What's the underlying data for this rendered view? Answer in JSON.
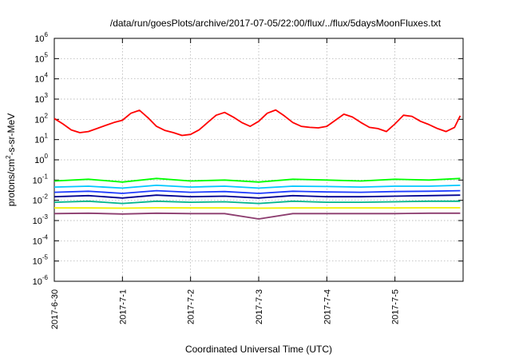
{
  "chart_data": {
    "type": "line",
    "title": "/data/run/goesPlots/archive/2017-07-05/22:00/flux/../flux/5daysMoonFluxes.txt",
    "xlabel": "Coordinated Universal Time (UTC)",
    "ylabel_parts": {
      "before": "protons/cm",
      "sup": "2",
      "after": "-s-sr-MeV"
    },
    "yscale": "log",
    "ylim": [
      1e-06,
      1000000.0
    ],
    "xlim": [
      "2017-06-30 00:00",
      "2017-07-06 00:00"
    ],
    "grid": true,
    "y_ticks": [
      {
        "value": 1e-06,
        "base": "10",
        "exp": "-6"
      },
      {
        "value": 1e-05,
        "base": "10",
        "exp": "-5"
      },
      {
        "value": 0.0001,
        "base": "10",
        "exp": "-4"
      },
      {
        "value": 0.001,
        "base": "10",
        "exp": "-3"
      },
      {
        "value": 0.01,
        "base": "10",
        "exp": "-2"
      },
      {
        "value": 0.1,
        "base": "10",
        "exp": "-1"
      },
      {
        "value": 1,
        "base": "10",
        "exp": "0"
      },
      {
        "value": 10,
        "base": "10",
        "exp": "1"
      },
      {
        "value": 100,
        "base": "10",
        "exp": "2"
      },
      {
        "value": 1000,
        "base": "10",
        "exp": "3"
      },
      {
        "value": 10000,
        "base": "10",
        "exp": "4"
      },
      {
        "value": 100000,
        "base": "10",
        "exp": "5"
      },
      {
        "value": 1000000,
        "base": "10",
        "exp": "6"
      }
    ],
    "x_ticks": [
      {
        "value": "2017-06-30",
        "label": "2017-6-30"
      },
      {
        "value": "2017-07-01",
        "label": "2017-7-1"
      },
      {
        "value": "2017-07-02",
        "label": "2017-7-2"
      },
      {
        "value": "2017-07-03",
        "label": "2017-7-3"
      },
      {
        "value": "2017-07-04",
        "label": "2017-7-4"
      },
      {
        "value": "2017-07-05",
        "label": "2017-7-5"
      }
    ],
    "series": [
      {
        "color": "#ff0000",
        "x": [
          "2017-06-30 00:00",
          "2017-06-30 03:00",
          "2017-06-30 06:00",
          "2017-06-30 09:00",
          "2017-06-30 12:00",
          "2017-06-30 15:00",
          "2017-06-30 18:00",
          "2017-06-30 21:00",
          "2017-07-01 00:00",
          "2017-07-01 03:00",
          "2017-07-01 06:00",
          "2017-07-01 09:00",
          "2017-07-01 12:00",
          "2017-07-01 15:00",
          "2017-07-01 18:00",
          "2017-07-01 21:00",
          "2017-07-02 00:00",
          "2017-07-02 03:00",
          "2017-07-02 06:00",
          "2017-07-02 09:00",
          "2017-07-02 12:00",
          "2017-07-02 15:00",
          "2017-07-02 18:00",
          "2017-07-02 21:00",
          "2017-07-03 00:00",
          "2017-07-03 03:00",
          "2017-07-03 06:00",
          "2017-07-03 09:00",
          "2017-07-03 12:00",
          "2017-07-03 15:00",
          "2017-07-03 18:00",
          "2017-07-03 21:00",
          "2017-07-04 00:00",
          "2017-07-04 03:00",
          "2017-07-04 06:00",
          "2017-07-04 09:00",
          "2017-07-04 12:00",
          "2017-07-04 15:00",
          "2017-07-04 18:00",
          "2017-07-04 21:00",
          "2017-07-05 00:00",
          "2017-07-05 03:00",
          "2017-07-05 06:00",
          "2017-07-05 09:00",
          "2017-07-05 12:00",
          "2017-07-05 15:00",
          "2017-07-05 18:00",
          "2017-07-05 21:00",
          "2017-07-05 23:00"
        ],
        "y": [
          110,
          60,
          30,
          22,
          25,
          35,
          50,
          70,
          90,
          200,
          280,
          120,
          45,
          28,
          22,
          16,
          18,
          30,
          70,
          160,
          220,
          130,
          70,
          45,
          80,
          200,
          290,
          150,
          70,
          45,
          40,
          38,
          45,
          90,
          180,
          130,
          70,
          40,
          35,
          25,
          60,
          160,
          140,
          80,
          55,
          35,
          25,
          40,
          150
        ]
      },
      {
        "color": "#00ff00",
        "x": [
          "2017-06-30 00:00",
          "2017-06-30 12:00",
          "2017-07-01 00:00",
          "2017-07-01 12:00",
          "2017-07-02 00:00",
          "2017-07-02 12:00",
          "2017-07-03 00:00",
          "2017-07-03 12:00",
          "2017-07-04 00:00",
          "2017-07-04 12:00",
          "2017-07-05 00:00",
          "2017-07-05 12:00",
          "2017-07-05 23:00"
        ],
        "y": [
          0.09,
          0.11,
          0.08,
          0.12,
          0.09,
          0.1,
          0.08,
          0.11,
          0.1,
          0.09,
          0.11,
          0.1,
          0.12
        ]
      },
      {
        "color": "#00c8ff",
        "x": [
          "2017-06-30 00:00",
          "2017-06-30 12:00",
          "2017-07-01 00:00",
          "2017-07-01 12:00",
          "2017-07-02 00:00",
          "2017-07-02 12:00",
          "2017-07-03 00:00",
          "2017-07-03 12:00",
          "2017-07-04 00:00",
          "2017-07-04 12:00",
          "2017-07-05 00:00",
          "2017-07-05 12:00",
          "2017-07-05 23:00"
        ],
        "y": [
          0.045,
          0.05,
          0.04,
          0.055,
          0.045,
          0.05,
          0.04,
          0.05,
          0.048,
          0.045,
          0.05,
          0.05,
          0.055
        ]
      },
      {
        "color": "#1e3cff",
        "x": [
          "2017-06-30 00:00",
          "2017-06-30 12:00",
          "2017-07-01 00:00",
          "2017-07-01 12:00",
          "2017-07-02 00:00",
          "2017-07-02 12:00",
          "2017-07-03 00:00",
          "2017-07-03 12:00",
          "2017-07-04 00:00",
          "2017-07-04 12:00",
          "2017-07-05 00:00",
          "2017-07-05 12:00",
          "2017-07-05 23:00"
        ],
        "y": [
          0.025,
          0.028,
          0.022,
          0.03,
          0.025,
          0.027,
          0.022,
          0.028,
          0.026,
          0.025,
          0.027,
          0.028,
          0.03
        ]
      },
      {
        "color": "#000090",
        "x": [
          "2017-06-30 00:00",
          "2017-06-30 12:00",
          "2017-07-01 00:00",
          "2017-07-01 12:00",
          "2017-07-02 00:00",
          "2017-07-02 12:00",
          "2017-07-03 00:00",
          "2017-07-03 12:00",
          "2017-07-04 00:00",
          "2017-07-04 12:00",
          "2017-07-05 00:00",
          "2017-07-05 12:00",
          "2017-07-05 23:00"
        ],
        "y": [
          0.015,
          0.017,
          0.013,
          0.018,
          0.015,
          0.016,
          0.013,
          0.017,
          0.015,
          0.015,
          0.016,
          0.017,
          0.018
        ]
      },
      {
        "color": "#00b48c",
        "x": [
          "2017-06-30 00:00",
          "2017-06-30 12:00",
          "2017-07-01 00:00",
          "2017-07-01 12:00",
          "2017-07-02 00:00",
          "2017-07-02 12:00",
          "2017-07-03 00:00",
          "2017-07-03 12:00",
          "2017-07-04 00:00",
          "2017-07-04 12:00",
          "2017-07-05 00:00",
          "2017-07-05 12:00",
          "2017-07-05 23:00"
        ],
        "y": [
          0.008,
          0.009,
          0.007,
          0.009,
          0.008,
          0.0085,
          0.007,
          0.009,
          0.008,
          0.008,
          0.0085,
          0.009,
          0.009
        ]
      },
      {
        "color": "#f0f000",
        "x": [
          "2017-06-30 00:00",
          "2017-06-30 12:00",
          "2017-07-01 00:00",
          "2017-07-01 12:00",
          "2017-07-02 00:00",
          "2017-07-02 12:00",
          "2017-07-03 00:00",
          "2017-07-03 12:00",
          "2017-07-04 00:00",
          "2017-07-04 12:00",
          "2017-07-05 00:00",
          "2017-07-05 12:00",
          "2017-07-05 23:00"
        ],
        "y": [
          0.0042,
          0.0042,
          0.0041,
          0.0043,
          0.0042,
          0.0042,
          0.0041,
          0.0042,
          0.0042,
          0.0042,
          0.0042,
          0.0043,
          0.0043
        ]
      },
      {
        "color": "#8c3c6e",
        "x": [
          "2017-06-30 00:00",
          "2017-06-30 12:00",
          "2017-07-01 00:00",
          "2017-07-01 12:00",
          "2017-07-02 00:00",
          "2017-07-02 12:00",
          "2017-07-03 00:00",
          "2017-07-03 12:00",
          "2017-07-04 00:00",
          "2017-07-04 12:00",
          "2017-07-05 00:00",
          "2017-07-05 12:00",
          "2017-07-05 23:00"
        ],
        "y": [
          0.0022,
          0.0023,
          0.0021,
          0.0023,
          0.0022,
          0.0022,
          0.0012,
          0.0022,
          0.0022,
          0.0022,
          0.0022,
          0.0023,
          0.0023
        ]
      }
    ]
  }
}
